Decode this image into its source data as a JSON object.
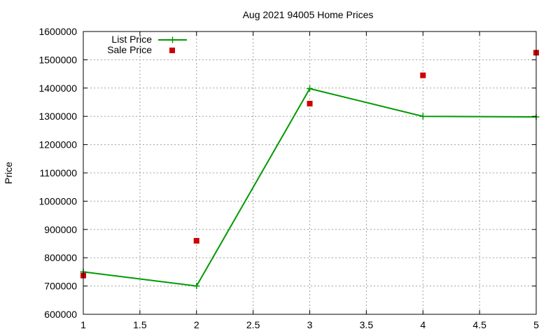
{
  "chart_data": {
    "type": "line",
    "title": "Aug 2021 94005 Home Prices",
    "xlabel": "",
    "ylabel": "Price",
    "xlim": [
      1,
      5
    ],
    "ylim": [
      600000,
      1600000
    ],
    "xticks": [
      1,
      1.5,
      2,
      2.5,
      3,
      3.5,
      4,
      4.5,
      5
    ],
    "xtick_labels": [
      "1",
      "1.5",
      "2",
      "2.5",
      "3",
      "3.5",
      "4",
      "4.5",
      "5"
    ],
    "yticks": [
      600000,
      700000,
      800000,
      900000,
      1000000,
      1100000,
      1200000,
      1300000,
      1400000,
      1500000,
      1600000
    ],
    "ytick_labels": [
      "600000",
      "700000",
      "800000",
      "900000",
      "1000000",
      "1100000",
      "1200000",
      "1300000",
      "1400000",
      "1500000",
      "1600000"
    ],
    "grid": true,
    "legend_position": "top-left",
    "series": [
      {
        "name": "List Price",
        "style": "linespoints",
        "marker": "plus",
        "color": "#009900",
        "x": [
          1,
          2,
          3,
          4,
          5
        ],
        "y": [
          750000,
          700000,
          1398000,
          1300000,
          1298000
        ]
      },
      {
        "name": "Sale Price",
        "style": "points",
        "marker": "square",
        "color": "#cc0000",
        "x": [
          1,
          2,
          3,
          4,
          5
        ],
        "y": [
          737000,
          860000,
          1345000,
          1445000,
          1525000
        ]
      }
    ]
  }
}
